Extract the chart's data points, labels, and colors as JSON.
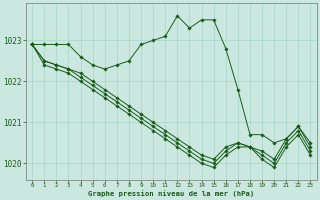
{
  "bg_color": "#cbe8e0",
  "grid_color": "#a8d5c8",
  "line_color": "#1a5c1a",
  "marker_color": "#1a5c1a",
  "title": "Graphe pression niveau de la mer (hPa)",
  "title_color": "#1a5c1a",
  "ylim": [
    1019.6,
    1023.9
  ],
  "yticks": [
    1020,
    1021,
    1022,
    1023
  ],
  "xtick_labels": [
    "0",
    "1",
    "2",
    "3",
    "4",
    "5",
    "6",
    "7",
    "8",
    "9",
    "10",
    "11",
    "12",
    "13",
    "14",
    "15",
    "16",
    "17",
    "18",
    "19",
    "20",
    "21",
    "22",
    "23"
  ],
  "series": [
    [
      1022.9,
      1022.9,
      1022.9,
      1022.9,
      1022.6,
      1022.4,
      1022.3,
      1022.4,
      1022.5,
      1022.9,
      1023.0,
      1023.1,
      1023.6,
      1023.3,
      1023.5,
      1023.5,
      1022.8,
      1021.8,
      1020.7,
      1020.7,
      1020.5,
      1020.6,
      1020.9,
      1020.5
    ],
    [
      1022.9,
      1022.5,
      1022.4,
      1022.3,
      1022.2,
      1022.0,
      1021.8,
      1021.6,
      1021.4,
      1021.2,
      1021.0,
      1020.8,
      1020.6,
      1020.4,
      1020.2,
      1020.1,
      1020.4,
      1020.5,
      1020.4,
      1020.3,
      1020.1,
      1020.6,
      1020.9,
      1020.4
    ],
    [
      1022.9,
      1022.5,
      1022.4,
      1022.3,
      1022.1,
      1021.9,
      1021.7,
      1021.5,
      1021.3,
      1021.1,
      1020.9,
      1020.7,
      1020.5,
      1020.3,
      1020.1,
      1020.0,
      1020.3,
      1020.5,
      1020.4,
      1020.2,
      1020.0,
      1020.5,
      1020.8,
      1020.3
    ],
    [
      1022.9,
      1022.4,
      1022.3,
      1022.2,
      1022.0,
      1021.8,
      1021.6,
      1021.4,
      1021.2,
      1021.0,
      1020.8,
      1020.6,
      1020.4,
      1020.2,
      1020.0,
      1019.9,
      1020.2,
      1020.4,
      1020.4,
      1020.1,
      1019.9,
      1020.4,
      1020.7,
      1020.2
    ]
  ]
}
